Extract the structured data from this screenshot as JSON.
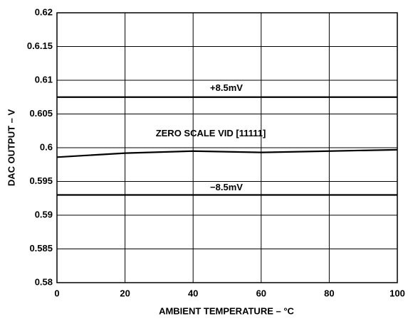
{
  "chart_data": {
    "type": "line",
    "x": [
      0,
      20,
      40,
      60,
      80,
      100
    ],
    "series": [
      {
        "name": "+8.5mV",
        "color": "#000000",
        "values": [
          0.6075,
          0.6075,
          0.6075,
          0.6075,
          0.6075,
          0.6075
        ]
      },
      {
        "name": "ZERO SCALE VID [11111]",
        "color": "#000000",
        "values": [
          0.5986,
          0.5992,
          0.5995,
          0.5993,
          0.5995,
          0.5997
        ]
      },
      {
        "name": "−8.5mV",
        "color": "#000000",
        "values": [
          0.593,
          0.593,
          0.593,
          0.593,
          0.593,
          0.593
        ]
      }
    ],
    "xlabel": "AMBIENT TEMPERATURE – °C",
    "ylabel": "DAC OUTPUT – V",
    "xlim": [
      0,
      100
    ],
    "xticks": [
      0,
      20,
      40,
      60,
      80,
      100
    ],
    "ylim": [
      0.58,
      0.62
    ],
    "yticks": [
      0.58,
      0.585,
      0.59,
      0.595,
      0.6,
      0.605,
      0.61,
      {
        "value": 0.615,
        "label": "0.6.15"
      },
      0.62
    ],
    "grid": true
  }
}
